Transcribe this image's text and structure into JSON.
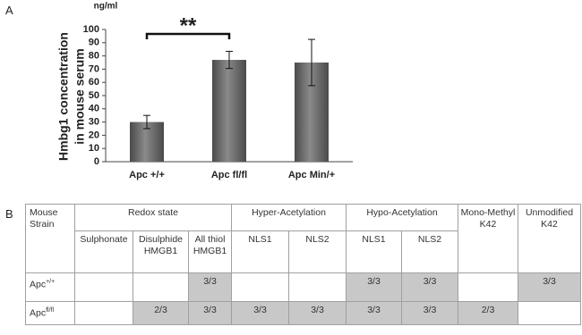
{
  "panel_labels": [
    "A",
    "B"
  ],
  "chart_data": {
    "type": "bar",
    "y_label": [
      "Hmbg1 concentration",
      "in mouse serum"
    ],
    "y_unit": "ng/ml",
    "categories": [
      "Apc +/+",
      "Apc fl/fl",
      "Apc Min/+"
    ],
    "values": [
      30,
      77,
      75
    ],
    "errors": [
      5,
      6.5,
      17.5
    ],
    "color": "#8a8a8a",
    "ylim": [
      0,
      100
    ],
    "yticks": [
      0,
      10,
      20,
      30,
      40,
      50,
      60,
      70,
      80,
      90,
      100
    ],
    "annotation": "**"
  },
  "table": {
    "corner": "Mouse Strain",
    "groups": [
      {
        "label": "Redox state",
        "columns": [
          "Sulphonate",
          "Disulphide HMGB1",
          "All thiol HMGB1"
        ]
      },
      {
        "label": "Hyper-Acetylation",
        "columns": [
          "NLS1",
          "NLS2"
        ]
      },
      {
        "label": "Hypo-Acetylation",
        "columns": [
          "NLS1",
          "NLS2"
        ]
      },
      {
        "label": "Mono-Methyl K42"
      },
      {
        "label": "Unmodified K42"
      }
    ],
    "rows": [
      {
        "strain": "Apc",
        "sup": "+/+",
        "cells": [
          null,
          null,
          "3/3",
          null,
          null,
          "3/3",
          "3/3",
          null,
          "3/3"
        ],
        "shaded": [
          false,
          false,
          true,
          false,
          false,
          true,
          true,
          false,
          true
        ]
      },
      {
        "strain": "Apc",
        "sup": "fl/fl",
        "cells": [
          null,
          "2/3",
          "3/3",
          "3/3",
          "3/3",
          "3/3",
          "3/3",
          "2/3",
          null
        ],
        "shaded": [
          false,
          true,
          true,
          true,
          true,
          true,
          true,
          true,
          false
        ]
      }
    ]
  }
}
